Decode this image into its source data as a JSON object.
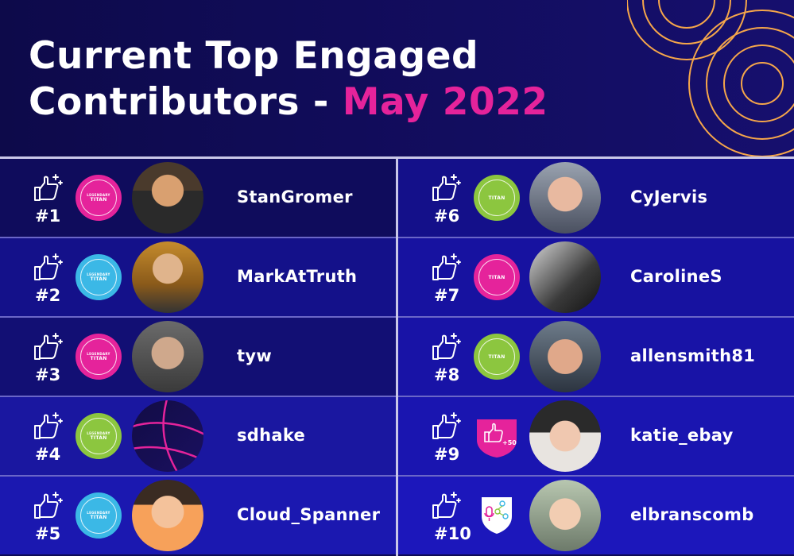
{
  "title": {
    "line1": "Current Top Engaged",
    "line2_prefix": "Contributors - ",
    "line2_accent": "May 2022"
  },
  "colors": {
    "background": "#0e0b56",
    "accent": "#e5239b",
    "badge_pink": "#e5239b",
    "badge_blue": "#3bb8e6",
    "badge_green": "#8cc63f",
    "rings": "#f5a64a"
  },
  "contributors": [
    {
      "rank": "#1",
      "name": "StanGromer",
      "badge": "legendary-titan-pink"
    },
    {
      "rank": "#2",
      "name": "MarkAtTruth",
      "badge": "legendary-titan-blue"
    },
    {
      "rank": "#3",
      "name": "tyw",
      "badge": "legendary-titan-pink"
    },
    {
      "rank": "#4",
      "name": "sdhake",
      "badge": "legendary-titan-green"
    },
    {
      "rank": "#5",
      "name": "Cloud_Spanner",
      "badge": "legendary-titan-blue"
    },
    {
      "rank": "#6",
      "name": "CyJervis",
      "badge": "titan-green"
    },
    {
      "rank": "#7",
      "name": "CarolineS",
      "badge": "titan-pink"
    },
    {
      "rank": "#8",
      "name": "allensmith81",
      "badge": "titan-green"
    },
    {
      "rank": "#9",
      "name": "katie_ebay",
      "badge": "thumbs-up-50-shield"
    },
    {
      "rank": "#10",
      "name": "elbranscomb",
      "badge": "podcast-shield"
    }
  ],
  "badge_text": {
    "legendary": "LEGENDARY",
    "titan": "TITAN",
    "shield_count": "+50"
  }
}
